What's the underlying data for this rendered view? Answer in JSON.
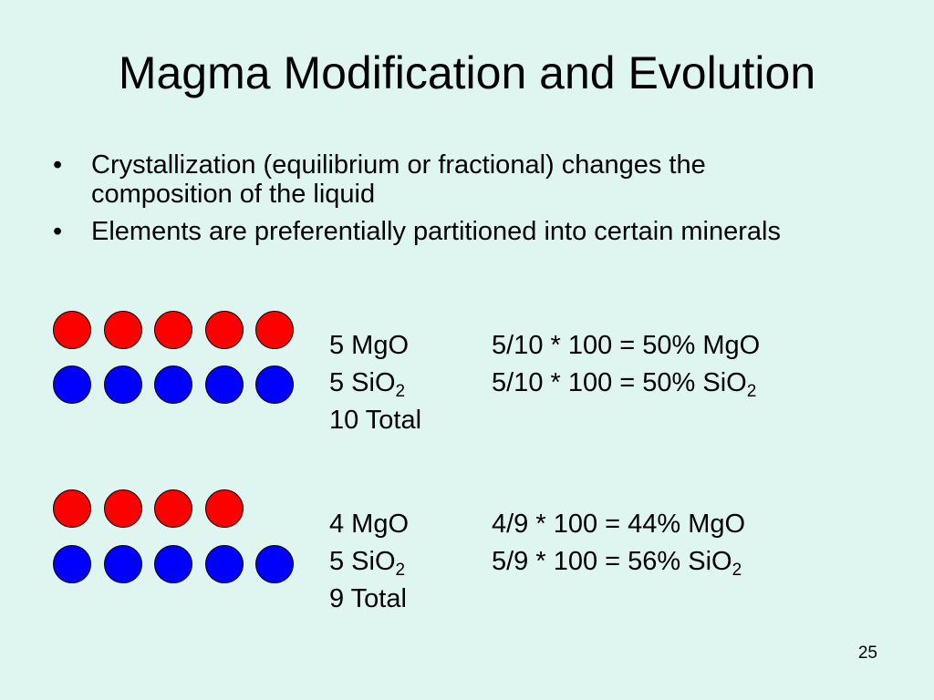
{
  "title": "Magma Modification and Evolution",
  "bullets": [
    {
      "text": "Crystallization (equilibrium or fractional) changes the composition of the liquid"
    },
    {
      "text": "Elements are preferentially partitioned into certain minerals"
    }
  ],
  "bullet_symbol": "•",
  "colors": {
    "background": "#dff6f0",
    "mgo_circle": "#ff0000",
    "sio2_circle": "#0000ff"
  },
  "examples": [
    {
      "mgo_count": 5,
      "sio2_count": 5,
      "mgo_left": "5 MgO",
      "mgo_right": "5/10 * 100 = 50% MgO",
      "sio2_left_base": "5 SiO",
      "sio2_right_base": "5/10 * 100 = 50% SiO",
      "subscript": "2",
      "total": "10 Total"
    },
    {
      "mgo_count": 4,
      "sio2_count": 5,
      "mgo_left": "4 MgO",
      "mgo_right": "4/9 * 100 = 44% MgO",
      "sio2_left_base": "5 SiO",
      "sio2_right_base": "5/9 * 100 = 56% SiO",
      "subscript": "2",
      "total": "9 Total"
    }
  ],
  "slide_number": "25"
}
